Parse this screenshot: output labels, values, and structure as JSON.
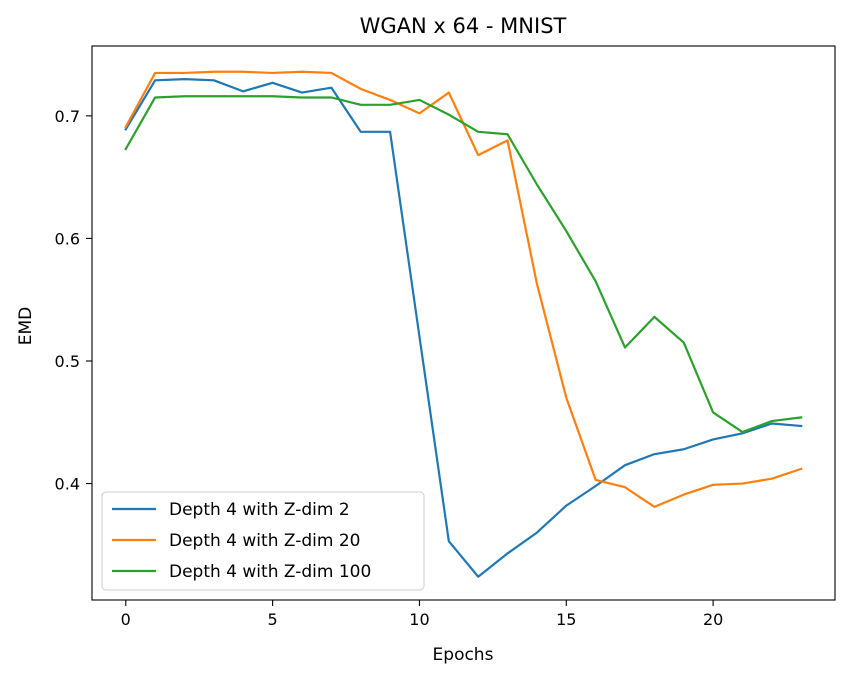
{
  "chart_data": {
    "type": "line",
    "title": "WGAN x 64 - MNIST",
    "xlabel": "Epochs",
    "ylabel": "EMD",
    "xlim": [
      -1.15,
      24.15
    ],
    "ylim": [
      0.305,
      0.757
    ],
    "xticks": [
      0,
      5,
      10,
      15,
      20
    ],
    "yticks": [
      0.4,
      0.5,
      0.6,
      0.7
    ],
    "ytick_labels": [
      "0.4",
      "0.5",
      "0.6",
      "0.7"
    ],
    "grid": false,
    "legend_position": "lower-left",
    "x": [
      0,
      1,
      2,
      3,
      4,
      5,
      6,
      7,
      8,
      9,
      10,
      11,
      12,
      13,
      14,
      15,
      16,
      17,
      18,
      19,
      20,
      21,
      22,
      23
    ],
    "series": [
      {
        "name": "Depth 4 with Z-dim 2",
        "color": "#1f77b4",
        "values": [
          0.689,
          0.729,
          0.73,
          0.729,
          0.72,
          0.727,
          0.719,
          0.723,
          0.687,
          0.687,
          0.52,
          0.353,
          0.324,
          0.343,
          0.36,
          0.382,
          0.398,
          0.415,
          0.424,
          0.428,
          0.436,
          0.441,
          0.449,
          0.447
        ]
      },
      {
        "name": "Depth 4 with Z-dim 20",
        "color": "#ff7f0e",
        "values": [
          0.691,
          0.735,
          0.735,
          0.736,
          0.736,
          0.735,
          0.736,
          0.735,
          0.722,
          0.713,
          0.702,
          0.719,
          0.668,
          0.68,
          0.563,
          0.47,
          0.403,
          0.397,
          0.381,
          0.391,
          0.399,
          0.4,
          0.404,
          0.412
        ]
      },
      {
        "name": "Depth 4 with Z-dim 100",
        "color": "#2ca02c",
        "values": [
          0.673,
          0.715,
          0.716,
          0.716,
          0.716,
          0.716,
          0.715,
          0.715,
          0.709,
          0.709,
          0.713,
          0.701,
          0.687,
          0.685,
          0.644,
          0.606,
          0.565,
          0.511,
          0.536,
          0.515,
          0.458,
          0.442,
          0.451,
          0.454
        ]
      }
    ]
  }
}
